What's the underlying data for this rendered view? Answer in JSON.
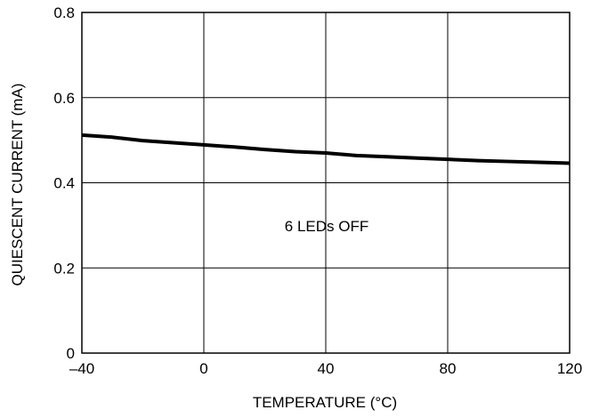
{
  "chart_data": {
    "type": "line",
    "title": "",
    "xlabel": "TEMPERATURE (°C)",
    "ylabel": "QUIESCENT CURRENT (mA)",
    "xlim": [
      -40,
      120
    ],
    "ylim": [
      0,
      0.8
    ],
    "x_ticks": [
      -40,
      0,
      40,
      80,
      120
    ],
    "x_tick_labels": [
      "–40",
      "0",
      "40",
      "80",
      "120"
    ],
    "y_ticks": [
      0,
      0.2,
      0.4,
      0.6,
      0.8
    ],
    "y_tick_labels": [
      "0",
      "0.2",
      "0.4",
      "0.6",
      "0.8"
    ],
    "grid": true,
    "line_color": "#000000",
    "annotation": "6 LEDs OFF",
    "series": [
      {
        "x": [
          -40,
          -30,
          -20,
          -10,
          0,
          10,
          20,
          30,
          40,
          50,
          60,
          70,
          80,
          90,
          100,
          110,
          120
        ],
        "y": [
          0.512,
          0.507,
          0.499,
          0.494,
          0.489,
          0.484,
          0.478,
          0.473,
          0.47,
          0.464,
          0.461,
          0.458,
          0.455,
          0.452,
          0.45,
          0.448,
          0.446
        ]
      }
    ]
  }
}
